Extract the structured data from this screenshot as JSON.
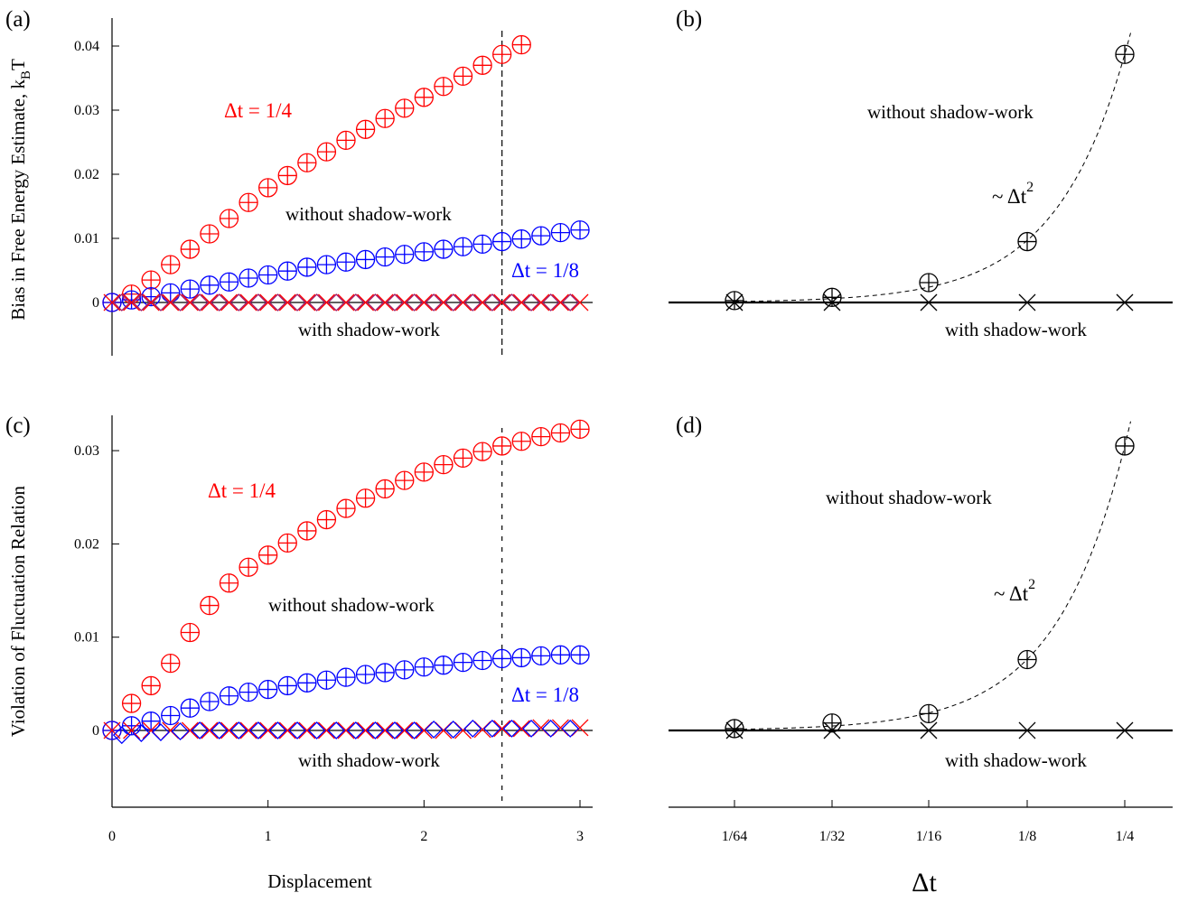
{
  "panels": {
    "a": {
      "tag": "(a)"
    },
    "b": {
      "tag": "(b)"
    },
    "c": {
      "tag": "(c)"
    },
    "d": {
      "tag": "(d)"
    }
  },
  "labels": {
    "ylabel_a_main": "Bias in Free Energy Estimate, k",
    "ylabel_a_sub": "B",
    "ylabel_a_tail": "T",
    "ylabel_c": "Violation of Fluctuation Relation",
    "xlabel_left": "Displacement",
    "xlabel_right": "Δt",
    "dt_quarter": "Δt = 1/4",
    "dt_eighth": "Δt = 1/8",
    "without": "without shadow-work",
    "with": "with shadow-work",
    "scaling_main": "~ Δt",
    "scaling_exp": "2"
  },
  "colors": {
    "red": "#ff0000",
    "blue": "#0000ff",
    "purple": "#a0206e",
    "black": "#000000"
  },
  "chart_data": [
    {
      "id": "a",
      "type": "scatter",
      "xlabel": "",
      "ylabel": "Bias in Free Energy Estimate, kBT",
      "xlim": [
        0,
        3
      ],
      "ylim": [
        -0.008,
        0.042
      ],
      "yticks": [
        "0",
        "0.01",
        "0.02",
        "0.03",
        "0.04"
      ],
      "ytick_values": [
        0,
        0.01,
        0.02,
        0.03,
        0.04
      ],
      "xticks": [],
      "vline_x": 2.5,
      "series": [
        {
          "name": "Δt = 1/4",
          "color": "red",
          "marker": "circle-plus",
          "x": [
            0,
            0.125,
            0.25,
            0.375,
            0.5,
            0.625,
            0.75,
            0.875,
            1.0,
            1.125,
            1.25,
            1.375,
            1.5,
            1.625,
            1.75,
            1.875,
            2.0,
            2.125,
            2.25,
            2.375,
            2.5,
            2.625
          ],
          "y": [
            0,
            0.0013,
            0.0035,
            0.0059,
            0.0083,
            0.0107,
            0.0131,
            0.0156,
            0.0179,
            0.0198,
            0.0218,
            0.0235,
            0.0253,
            0.027,
            0.0287,
            0.0303,
            0.032,
            0.0337,
            0.0353,
            0.037,
            0.0387,
            0.0402
          ]
        },
        {
          "name": "Δt = 1/8",
          "color": "blue",
          "marker": "circle-plus",
          "x": [
            0,
            0.125,
            0.25,
            0.375,
            0.5,
            0.625,
            0.75,
            0.875,
            1.0,
            1.125,
            1.25,
            1.375,
            1.5,
            1.625,
            1.75,
            1.875,
            2.0,
            2.125,
            2.25,
            2.375,
            2.5,
            2.625,
            2.75,
            2.875,
            3.0
          ],
          "y": [
            0,
            0.0004,
            0.0009,
            0.0015,
            0.0021,
            0.0027,
            0.0032,
            0.0038,
            0.0043,
            0.0049,
            0.0055,
            0.0059,
            0.0063,
            0.0067,
            0.0071,
            0.0075,
            0.0079,
            0.0083,
            0.0087,
            0.0091,
            0.0095,
            0.0099,
            0.0104,
            0.0109,
            0.0113
          ]
        },
        {
          "name": "with shadow-work (1/4)",
          "color": "red",
          "marker": "x",
          "x": [
            0,
            0.125,
            0.25,
            0.375,
            0.5,
            0.625,
            0.75,
            0.875,
            1.0,
            1.125,
            1.25,
            1.375,
            1.5,
            1.625,
            1.75,
            1.875,
            2.0,
            2.125,
            2.25,
            2.375,
            2.5,
            2.625,
            2.75,
            2.875,
            3.0
          ],
          "y": [
            0,
            0,
            0,
            0,
            0,
            0,
            0,
            0,
            0,
            0,
            0,
            0,
            0,
            0,
            0,
            0,
            0,
            0,
            0,
            0,
            0,
            0,
            0,
            0,
            0
          ]
        },
        {
          "name": "with shadow-work (1/8)",
          "color": "purple",
          "marker": "diamond",
          "x": [
            0.0625,
            0.1875,
            0.3125,
            0.4375,
            0.5625,
            0.6875,
            0.8125,
            0.9375,
            1.0625,
            1.1875,
            1.3125,
            1.4375,
            1.5625,
            1.6875,
            1.8125,
            1.9375,
            2.0625,
            2.1875,
            2.3125,
            2.4375,
            2.5625,
            2.6875,
            2.8125,
            2.9375
          ],
          "y": [
            0,
            0,
            0,
            0,
            0,
            0,
            0,
            0,
            0,
            0,
            0,
            0,
            0,
            0,
            0,
            0,
            0,
            0,
            0,
            0,
            0,
            0,
            0,
            0
          ]
        }
      ]
    },
    {
      "id": "b",
      "type": "scatter",
      "xlabel": "",
      "ylabel": "",
      "ylim": [
        -0.008,
        0.042
      ],
      "categories": [
        "1/64",
        "1/32",
        "1/16",
        "1/8",
        "1/4"
      ],
      "series": [
        {
          "name": "without shadow-work",
          "marker": "circle-plus",
          "y": [
            0.0003,
            0.0008,
            0.0031,
            0.0095,
            0.0387
          ]
        },
        {
          "name": "with shadow-work",
          "marker": "x",
          "y": [
            0,
            0,
            0,
            0,
            0
          ]
        }
      ],
      "fit": "~ Δt²"
    },
    {
      "id": "c",
      "type": "scatter",
      "xlabel": "Displacement",
      "ylabel": "Violation of Fluctuation Relation",
      "xlim": [
        0,
        3
      ],
      "ylim": [
        -0.008,
        0.033
      ],
      "yticks": [
        "0",
        "0.01",
        "0.02",
        "0.03"
      ],
      "ytick_values": [
        0,
        0.01,
        0.02,
        0.03
      ],
      "xticks": [
        "0",
        "1",
        "2",
        "3"
      ],
      "xtick_values": [
        0,
        1,
        2,
        3
      ],
      "vline_x": 2.5,
      "series": [
        {
          "name": "Δt = 1/4",
          "color": "red",
          "marker": "circle-plus",
          "x": [
            0,
            0.125,
            0.25,
            0.375,
            0.5,
            0.625,
            0.75,
            0.875,
            1.0,
            1.125,
            1.25,
            1.375,
            1.5,
            1.625,
            1.75,
            1.875,
            2.0,
            2.125,
            2.25,
            2.375,
            2.5,
            2.625,
            2.75,
            2.875,
            3.0
          ],
          "y": [
            0,
            0.0029,
            0.0048,
            0.0072,
            0.0105,
            0.0134,
            0.0158,
            0.0175,
            0.0188,
            0.0201,
            0.0214,
            0.0226,
            0.0238,
            0.0249,
            0.0259,
            0.0268,
            0.0277,
            0.0285,
            0.0292,
            0.0299,
            0.0305,
            0.031,
            0.0315,
            0.0319,
            0.0323
          ]
        },
        {
          "name": "Δt = 1/8",
          "color": "blue",
          "marker": "circle-plus",
          "x": [
            0,
            0.125,
            0.25,
            0.375,
            0.5,
            0.625,
            0.75,
            0.875,
            1.0,
            1.125,
            1.25,
            1.375,
            1.5,
            1.625,
            1.75,
            1.875,
            2.0,
            2.125,
            2.25,
            2.375,
            2.5,
            2.625,
            2.75,
            2.875,
            3.0
          ],
          "y": [
            0,
            0.0005,
            0.001,
            0.0016,
            0.0024,
            0.0031,
            0.0037,
            0.0041,
            0.0044,
            0.0048,
            0.0051,
            0.0054,
            0.0057,
            0.006,
            0.0062,
            0.0065,
            0.0068,
            0.007,
            0.0073,
            0.0075,
            0.0077,
            0.0078,
            0.008,
            0.0081,
            0.0081
          ]
        },
        {
          "name": "with shadow-work (1/4)",
          "color": "red",
          "marker": "x",
          "x": [
            0,
            0.125,
            0.25,
            0.375,
            0.5,
            0.625,
            0.75,
            0.875,
            1.0,
            1.125,
            1.25,
            1.375,
            1.5,
            1.625,
            1.75,
            1.875,
            2.0,
            2.125,
            2.25,
            2.375,
            2.5,
            2.625,
            2.75,
            2.875,
            3.0
          ],
          "y": [
            0,
            0,
            0,
            0,
            0,
            0,
            0,
            0,
            0,
            0,
            0,
            0,
            0,
            0,
            0,
            0,
            0,
            0,
            0,
            0.0001,
            0.0002,
            0.0002,
            0.0003,
            0.0003,
            0.0003
          ]
        },
        {
          "name": "with shadow-work (1/8)",
          "color": "blue",
          "marker": "diamond",
          "x": [
            0.0625,
            0.1875,
            0.3125,
            0.4375,
            0.5625,
            0.6875,
            0.8125,
            0.9375,
            1.0625,
            1.1875,
            1.3125,
            1.4375,
            1.5625,
            1.6875,
            1.8125,
            1.9375,
            2.0625,
            2.1875,
            2.3125,
            2.4375,
            2.5625,
            2.6875,
            2.8125,
            2.9375
          ],
          "y": [
            -0.0005,
            -0.0003,
            -0.0002,
            -0.0001,
            0,
            0,
            0,
            0,
            0,
            0,
            0,
            0,
            0,
            0,
            0,
            0,
            0.0001,
            0.0001,
            0.0002,
            0.0002,
            0.0002,
            0.0002,
            0.0002,
            0.0002
          ]
        }
      ]
    },
    {
      "id": "d",
      "type": "scatter",
      "xlabel": "Δt",
      "ylabel": "",
      "ylim": [
        -0.008,
        0.033
      ],
      "categories": [
        "1/64",
        "1/32",
        "1/16",
        "1/8",
        "1/4"
      ],
      "series": [
        {
          "name": "without shadow-work",
          "marker": "circle-plus",
          "y": [
            0.0002,
            0.0008,
            0.0018,
            0.0076,
            0.0305
          ]
        },
        {
          "name": "with shadow-work",
          "marker": "x",
          "y": [
            0,
            0,
            0,
            0,
            0
          ]
        }
      ],
      "fit": "~ Δt²"
    }
  ]
}
